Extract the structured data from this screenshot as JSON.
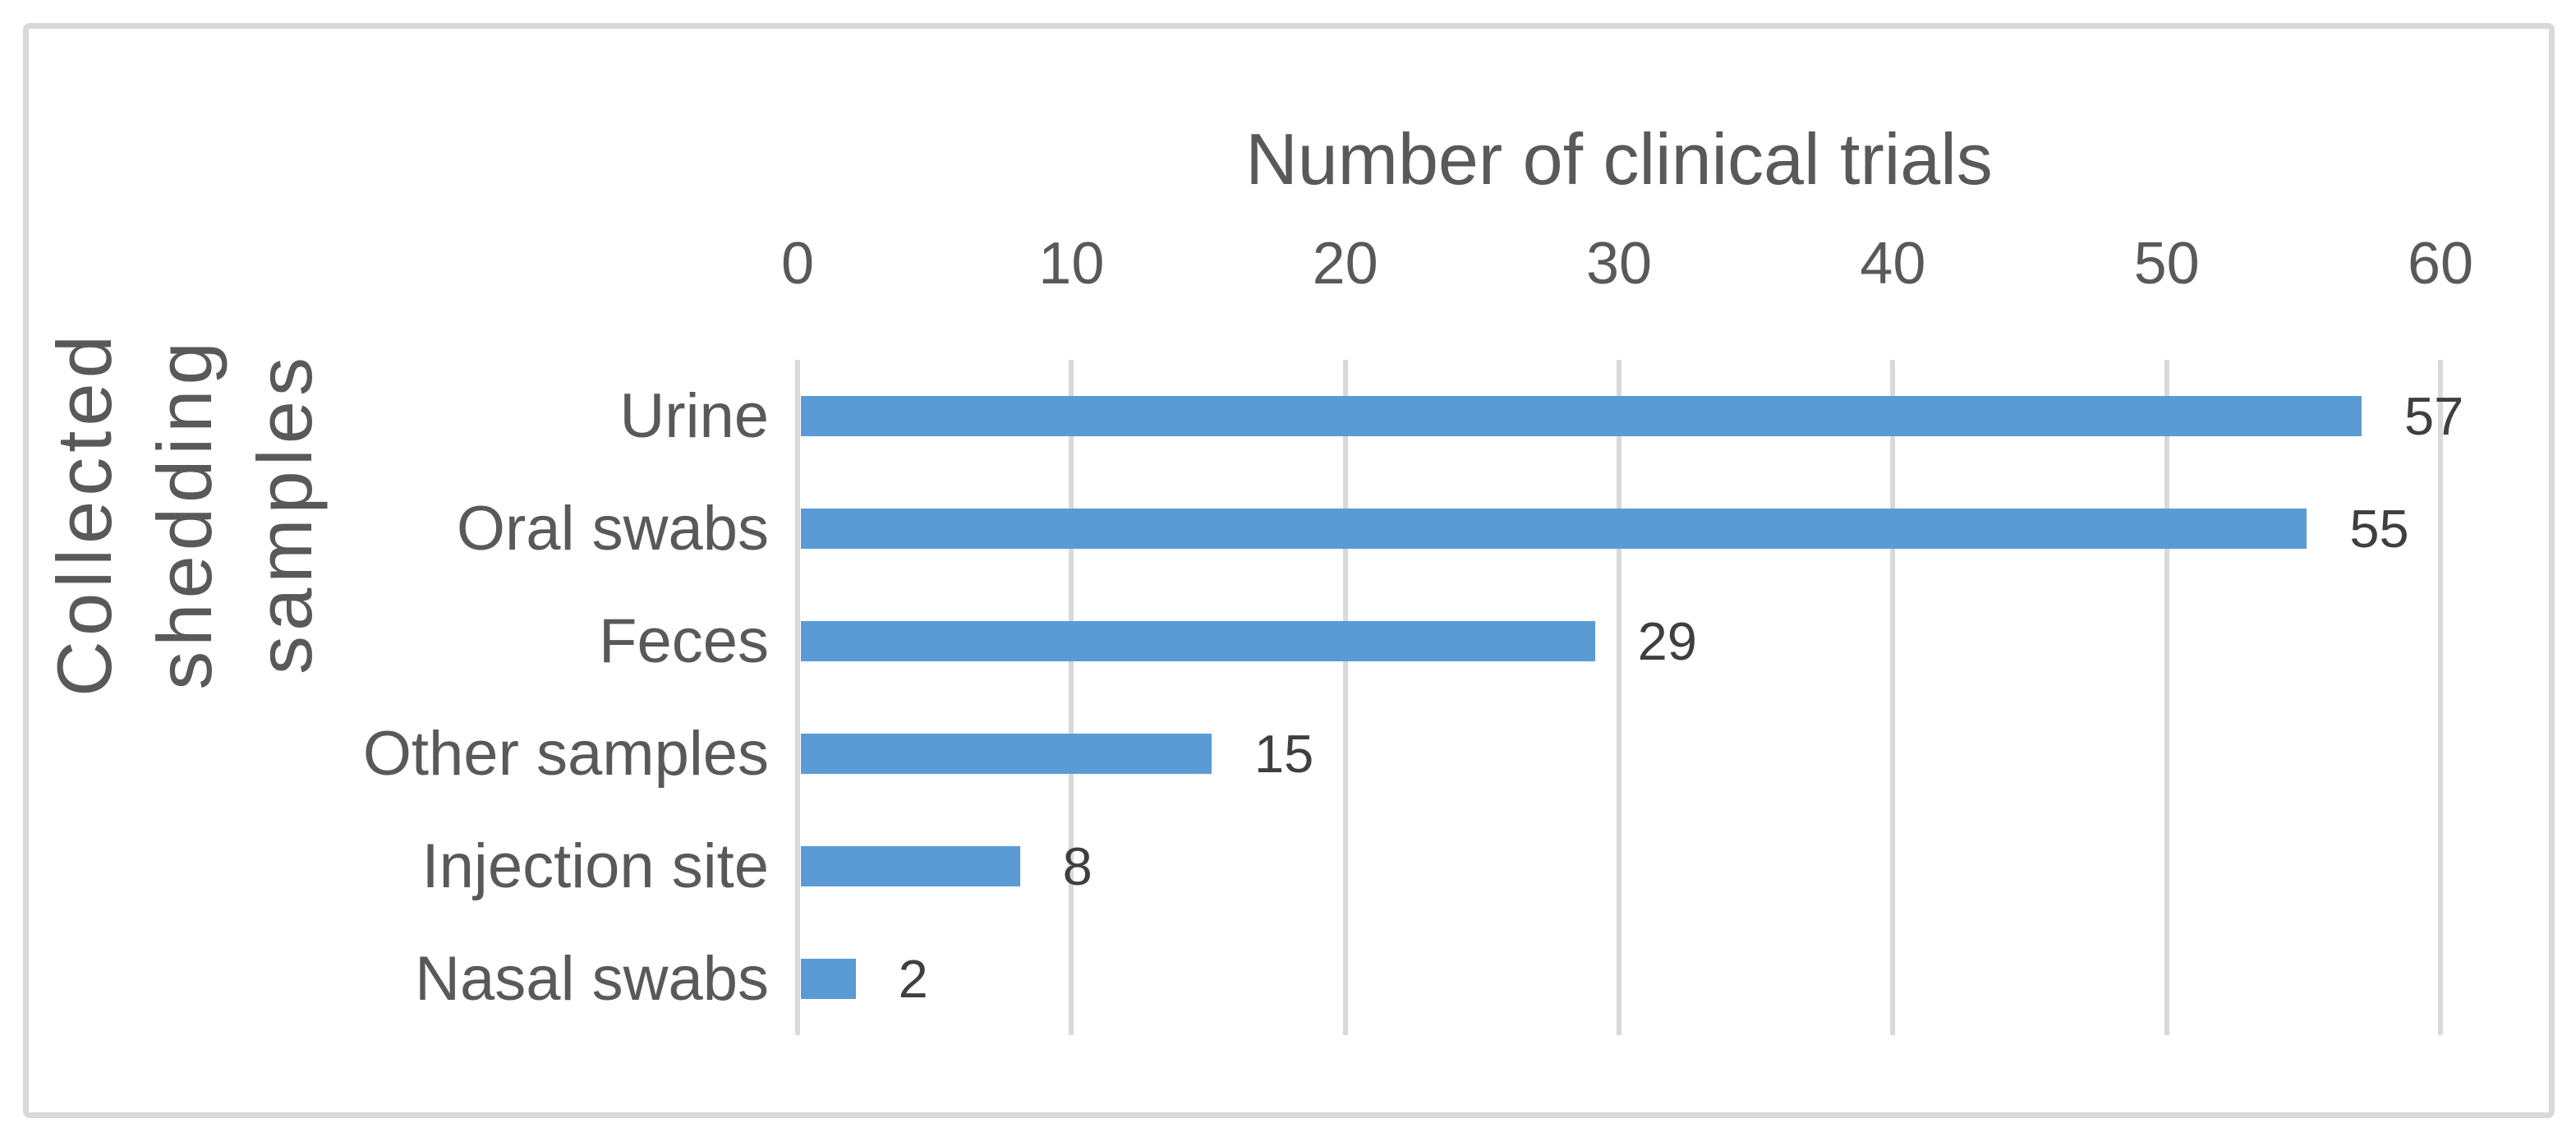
{
  "figure": {
    "background_color": "#FFFFFF",
    "border_color": "#D9D9D9"
  },
  "chart_data": {
    "type": "bar",
    "orientation": "horizontal",
    "title": "Number of clinical trials",
    "xlabel": "Number of clinical trials",
    "ylabel": "Collected shedding samples",
    "ylabel_lines": [
      "Collected shedding",
      "samples"
    ],
    "categories": [
      "Urine",
      "Oral swabs",
      "Feces",
      "Other samples",
      "Injection site",
      "Nasal swabs"
    ],
    "values": [
      57,
      55,
      29,
      15,
      8,
      2
    ],
    "data_labels": [
      "57",
      "55",
      "29",
      "15",
      "8",
      "2"
    ],
    "xlim": [
      0,
      60
    ],
    "xticks": [
      0,
      10,
      20,
      30,
      40,
      50,
      60
    ],
    "xtick_side": "top",
    "grid": true,
    "legend": false,
    "colors": {
      "bar": "#5B9BD5",
      "gridline": "#D9D9D9",
      "title_text": "#595959",
      "axis_text": "#595959",
      "category_text": "#595959",
      "data_label_text": "#3F3F3F"
    }
  }
}
